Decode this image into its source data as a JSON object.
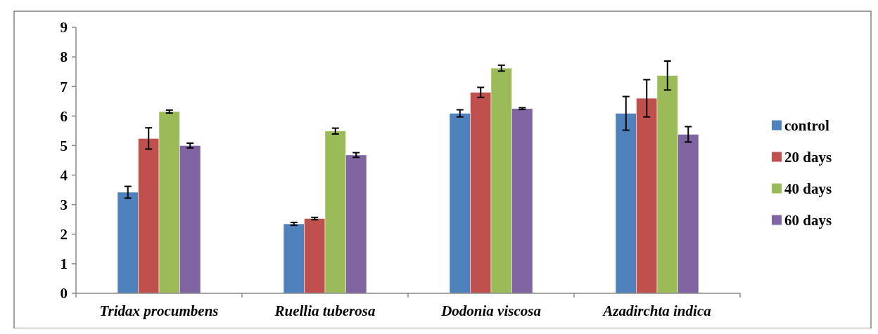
{
  "chart_data": {
    "type": "bar",
    "categories": [
      "Tridax procumbens",
      "Ruellia tuberosa",
      "Dodonia viscosa",
      "Azadirchta indica"
    ],
    "series": [
      {
        "name": "control",
        "color": "#4f81bd",
        "values": [
          3.42,
          2.35,
          6.09,
          6.09
        ],
        "errors": [
          0.2,
          0.05,
          0.12,
          0.57
        ]
      },
      {
        "name": "20 days",
        "color": "#c0504d",
        "values": [
          5.24,
          2.53,
          6.8,
          6.6
        ],
        "errors": [
          0.36,
          0.04,
          0.17,
          0.63
        ]
      },
      {
        "name": "40 days",
        "color": "#9bbb59",
        "values": [
          6.15,
          5.49,
          7.62,
          7.37
        ],
        "errors": [
          0.05,
          0.1,
          0.1,
          0.49
        ]
      },
      {
        "name": "60 days",
        "color": "#8064a2",
        "values": [
          5.0,
          4.68,
          6.25,
          5.38
        ],
        "errors": [
          0.08,
          0.08,
          0.03,
          0.26
        ]
      }
    ],
    "ylim": [
      0,
      9
    ],
    "yticks": [
      0,
      1,
      2,
      3,
      4,
      5,
      6,
      7,
      8,
      9
    ],
    "grid": false,
    "legend": "right"
  }
}
